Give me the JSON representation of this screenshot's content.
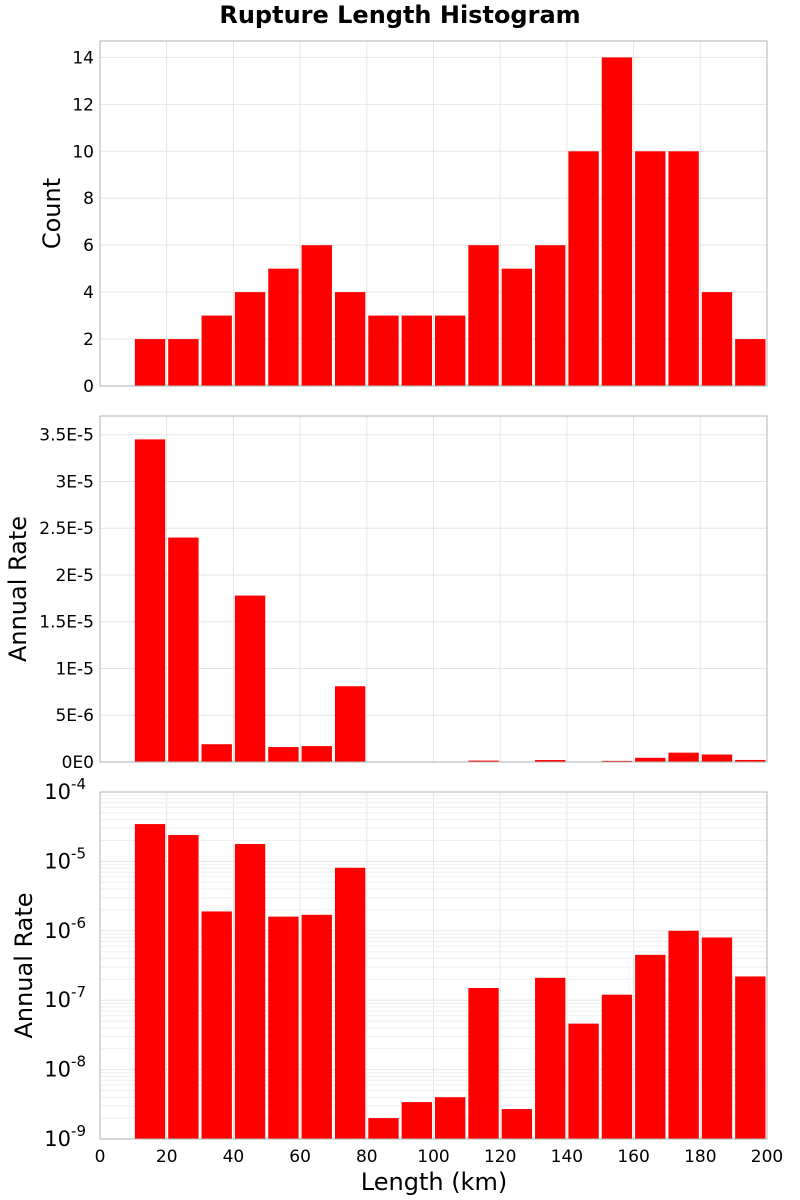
{
  "chart_data": {
    "title": "Rupture Length Histogram",
    "xlabel": "Length (km)",
    "xlim": [
      0,
      200
    ],
    "x_ticks": [
      0,
      20,
      40,
      60,
      80,
      100,
      120,
      140,
      160,
      180,
      200
    ],
    "bin_width": 10,
    "bar_color": "#ff0000",
    "grid": true,
    "panels": [
      {
        "type": "bar",
        "ylabel": "Count",
        "yscale": "linear",
        "ylim": [
          0,
          14.7
        ],
        "y_ticks": [
          0,
          2,
          4,
          6,
          8,
          10,
          12,
          14
        ],
        "y_tick_labels": [
          "0",
          "2",
          "4",
          "6",
          "8",
          "10",
          "12",
          "14"
        ],
        "bin_centers": [
          15,
          25,
          35,
          45,
          55,
          65,
          75,
          85,
          95,
          105,
          115,
          125,
          135,
          145,
          155,
          165,
          175,
          185,
          195
        ],
        "values": [
          2,
          2,
          3,
          4,
          5,
          6,
          4,
          3,
          3,
          3,
          6,
          5,
          6,
          10,
          14,
          10,
          10,
          4,
          2
        ]
      },
      {
        "type": "bar",
        "ylabel": "Annual Rate",
        "yscale": "linear",
        "ylim": [
          0,
          3.7e-05
        ],
        "y_ticks": [
          0,
          5e-06,
          1e-05,
          1.5e-05,
          2e-05,
          2.5e-05,
          3e-05,
          3.5e-05
        ],
        "y_tick_labels": [
          "0E0",
          "5E-6",
          "1E-5",
          "1.5E-5",
          "2E-5",
          "2.5E-5",
          "3E-5",
          "3.5E-5"
        ],
        "bin_centers": [
          15,
          25,
          35,
          45,
          55,
          65,
          75,
          85,
          95,
          105,
          115,
          125,
          135,
          145,
          155,
          165,
          175,
          185,
          195
        ],
        "values": [
          3.45e-05,
          2.4e-05,
          1.9e-06,
          1.78e-05,
          1.6e-06,
          1.7e-06,
          8.1e-06,
          2e-09,
          3.4e-09,
          4e-09,
          1.5e-07,
          2.7e-09,
          2.1e-07,
          4.6e-08,
          1.2e-07,
          4.5e-07,
          1e-06,
          8e-07,
          2.2e-07
        ]
      },
      {
        "type": "bar",
        "ylabel": "Annual Rate",
        "yscale": "log",
        "ylim": [
          1e-09,
          0.0001
        ],
        "y_ticks_exp": [
          -9,
          -8,
          -7,
          -6,
          -5,
          -4
        ],
        "y_tick_base": "10",
        "bin_centers": [
          15,
          25,
          35,
          45,
          55,
          65,
          75,
          85,
          95,
          105,
          115,
          125,
          135,
          145,
          155,
          165,
          175,
          185,
          195
        ],
        "values": [
          3.45e-05,
          2.4e-05,
          1.9e-06,
          1.78e-05,
          1.6e-06,
          1.7e-06,
          8.1e-06,
          2e-09,
          3.4e-09,
          4e-09,
          1.5e-07,
          2.7e-09,
          2.1e-07,
          4.6e-08,
          1.2e-07,
          4.5e-07,
          1e-06,
          8e-07,
          2.2e-07
        ]
      }
    ]
  }
}
